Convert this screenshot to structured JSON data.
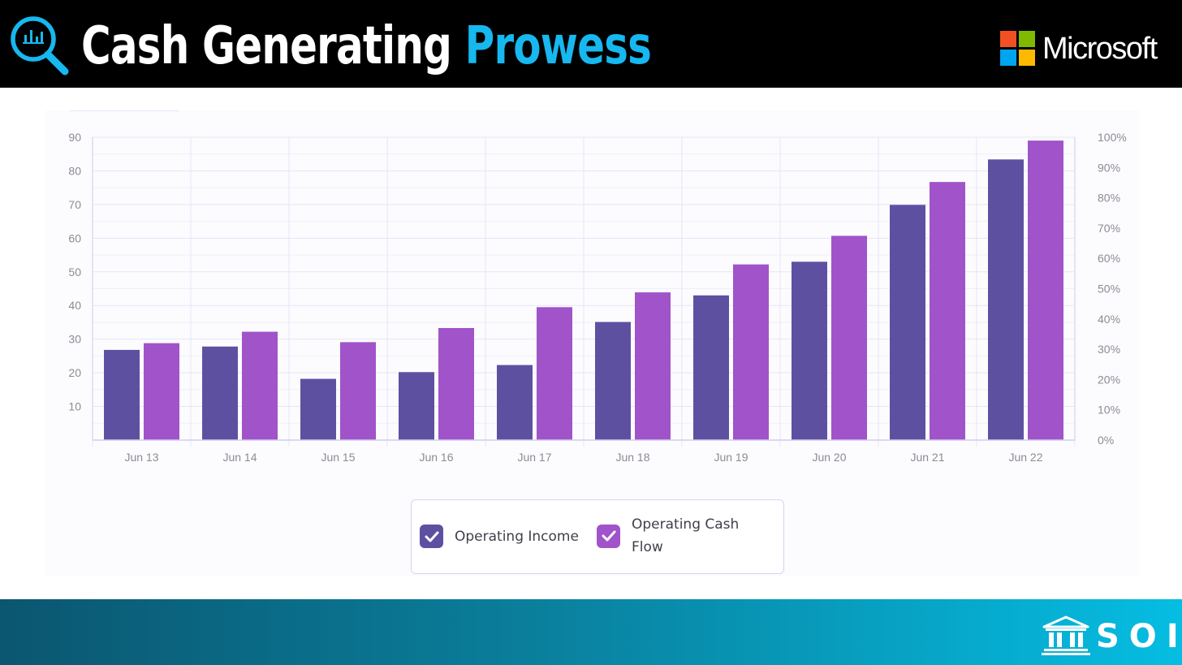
{
  "header": {
    "title_main": "Cash Generating",
    "title_highlight": "Prowess",
    "brand_name": "Microsoft",
    "icon": "magnifier-bar-chart-icon",
    "colors": {
      "background": "#000000",
      "title": "#ffffff",
      "highlight": "#16b8ef"
    }
  },
  "chart_data": {
    "type": "bar",
    "title": "",
    "xlabel": "",
    "ylabel": "",
    "categories": [
      "Jun 13",
      "Jun 14",
      "Jun 15",
      "Jun 16",
      "Jun 17",
      "Jun 18",
      "Jun 19",
      "Jun 20",
      "Jun 21",
      "Jun 22"
    ],
    "series": [
      {
        "name": "Operating Income",
        "color": "#5e50a1",
        "values": [
          26.8,
          27.8,
          18.2,
          20.2,
          22.3,
          35.1,
          43.0,
          53.0,
          69.9,
          83.4
        ]
      },
      {
        "name": "Operating Cash Flow",
        "color": "#a153c9",
        "values": [
          28.8,
          32.2,
          29.1,
          33.3,
          39.5,
          43.9,
          52.2,
          60.7,
          76.7,
          89.0
        ]
      }
    ],
    "ylim": [
      0,
      90
    ],
    "y_ticks": [
      "10",
      "20",
      "30",
      "40",
      "50",
      "60",
      "70",
      "80",
      "90"
    ],
    "y2_ticks": [
      "0%",
      "10%",
      "20%",
      "30%",
      "40%",
      "50%",
      "60%",
      "70%",
      "80%",
      "90%",
      "100%"
    ],
    "grid": true,
    "legend_position": "bottom-center"
  },
  "legend": {
    "items": [
      {
        "label_line1": "Operating Income",
        "label_line2": "",
        "color": "#5e50a1",
        "icon": "checkbox-checked-icon"
      },
      {
        "label_line1": "Operating Cash",
        "label_line2": "Flow",
        "color": "#a153c9",
        "icon": "checkbox-checked-icon"
      }
    ]
  },
  "footer": {
    "brand_text": "SOIC",
    "icon": "bank-building-icon",
    "colors": {
      "gradient_start": "#0b5670",
      "gradient_end": "#05bde2"
    }
  }
}
